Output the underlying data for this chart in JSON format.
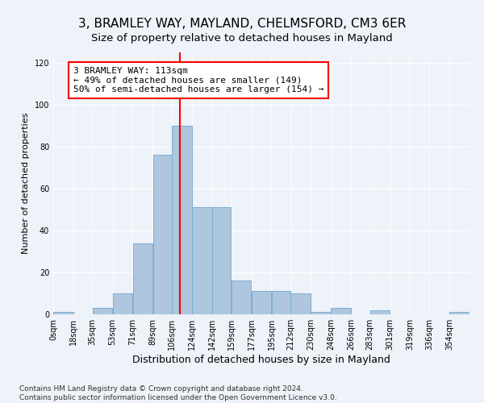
{
  "title": "3, BRAMLEY WAY, MAYLAND, CHELMSFORD, CM3 6ER",
  "subtitle": "Size of property relative to detached houses in Mayland",
  "xlabel": "Distribution of detached houses by size in Mayland",
  "ylabel": "Number of detached properties",
  "bar_values": [
    1,
    0,
    3,
    10,
    34,
    76,
    90,
    51,
    51,
    16,
    11,
    11,
    10,
    1,
    3,
    0,
    2,
    0,
    0,
    0,
    1
  ],
  "bin_edges": [
    0,
    18,
    35,
    53,
    71,
    89,
    106,
    124,
    142,
    159,
    177,
    195,
    212,
    230,
    248,
    266,
    283,
    301,
    319,
    336,
    354,
    372
  ],
  "tick_labels": [
    "0sqm",
    "18sqm",
    "35sqm",
    "53sqm",
    "71sqm",
    "89sqm",
    "106sqm",
    "124sqm",
    "142sqm",
    "159sqm",
    "177sqm",
    "195sqm",
    "212sqm",
    "230sqm",
    "248sqm",
    "266sqm",
    "283sqm",
    "301sqm",
    "319sqm",
    "336sqm",
    "354sqm"
  ],
  "bar_color": "#aec6de",
  "bar_edgecolor": "#7aafd4",
  "vline_x": 113,
  "vline_color": "red",
  "annotation_text": "3 BRAMLEY WAY: 113sqm\n← 49% of detached houses are smaller (149)\n50% of semi-detached houses are larger (154) →",
  "annotation_box_edgecolor": "red",
  "ylim": [
    0,
    125
  ],
  "yticks": [
    0,
    20,
    40,
    60,
    80,
    100,
    120
  ],
  "footer_text": "Contains HM Land Registry data © Crown copyright and database right 2024.\nContains public sector information licensed under the Open Government Licence v3.0.",
  "title_fontsize": 11,
  "xlabel_fontsize": 9,
  "ylabel_fontsize": 8,
  "tick_fontsize": 7,
  "annotation_fontsize": 8,
  "footer_fontsize": 6.5,
  "background_color": "#eef2f9"
}
